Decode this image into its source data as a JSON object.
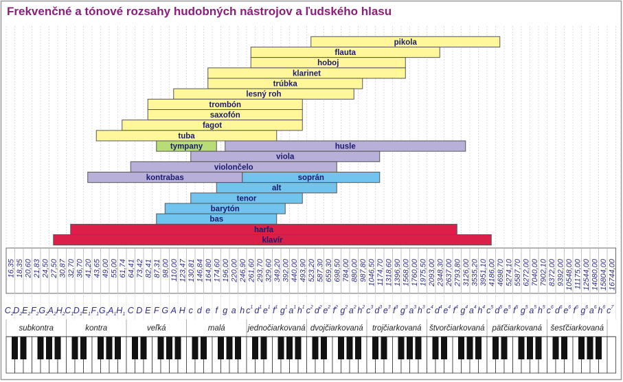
{
  "title": "Frekvenčné a tónové rozsahy hudobných nástrojov a ľudského hlasu",
  "frequencies": [
    "16,35",
    "18,35",
    "20,60",
    "21,83",
    "24,50",
    "27,50",
    "30,87",
    "32,70",
    "36,70",
    "41,20",
    "43,65",
    "49,00",
    "55,00",
    "61,74",
    "64,41",
    "73,42",
    "82,41",
    "87,31",
    "98,00",
    "110,00",
    "123,47",
    "130,81",
    "146,84",
    "164,80",
    "174,60",
    "196,00",
    "220,00",
    "246,90",
    "261,60",
    "293,70",
    "329,60",
    "349,20",
    "392,00",
    "440,00",
    "493,90",
    "523,20",
    "587,30",
    "659,30",
    "698,50",
    "784,00",
    "880,00",
    "987,80",
    "1046,50",
    "1174,70",
    "1318,60",
    "1396,90",
    "1568,00",
    "1760,00",
    "1975,50",
    "2093,00",
    "2348,30",
    "2637,00",
    "2793,80",
    "3126,00",
    "3535,20",
    "3951,10",
    "4186,00",
    "4698,70",
    "5274,10",
    "5587,70",
    "6272,00",
    "7040,00",
    "7902,10",
    "8372,00",
    "9392,00",
    "10548,00",
    "11175,00",
    "12544,00",
    "14080,00",
    "15804,00",
    "16744,00"
  ],
  "notes": [
    {
      "l": "C",
      "i": "2"
    },
    {
      "l": "D",
      "i": "2"
    },
    {
      "l": "E",
      "i": "2"
    },
    {
      "l": "F",
      "i": "2"
    },
    {
      "l": "G",
      "i": "2"
    },
    {
      "l": "A",
      "i": "2"
    },
    {
      "l": "H",
      "i": "2"
    },
    {
      "l": "C",
      "i": "1"
    },
    {
      "l": "D",
      "i": "1"
    },
    {
      "l": "E",
      "i": "1"
    },
    {
      "l": "F",
      "i": "1"
    },
    {
      "l": "G",
      "i": "1"
    },
    {
      "l": "A",
      "i": "1"
    },
    {
      "l": "H",
      "i": "1"
    },
    {
      "l": "C",
      "i": ""
    },
    {
      "l": "D",
      "i": ""
    },
    {
      "l": "E",
      "i": ""
    },
    {
      "l": "F",
      "i": ""
    },
    {
      "l": "G",
      "i": ""
    },
    {
      "l": "A",
      "i": ""
    },
    {
      "l": "H",
      "i": ""
    },
    {
      "l": "c",
      "i": ""
    },
    {
      "l": "d",
      "i": ""
    },
    {
      "l": "e",
      "i": ""
    },
    {
      "l": "f",
      "i": ""
    },
    {
      "l": "g",
      "i": ""
    },
    {
      "l": "a",
      "i": ""
    },
    {
      "l": "h",
      "i": ""
    },
    {
      "l": "c",
      "i": "1"
    },
    {
      "l": "d",
      "i": "1"
    },
    {
      "l": "e",
      "i": "1"
    },
    {
      "l": "f",
      "i": "1"
    },
    {
      "l": "g",
      "i": "1"
    },
    {
      "l": "a",
      "i": "1"
    },
    {
      "l": "h",
      "i": "1"
    },
    {
      "l": "c",
      "i": "2"
    },
    {
      "l": "d",
      "i": "2"
    },
    {
      "l": "e",
      "i": "2"
    },
    {
      "l": "f",
      "i": "2"
    },
    {
      "l": "g",
      "i": "2"
    },
    {
      "l": "a",
      "i": "2"
    },
    {
      "l": "h",
      "i": "2"
    },
    {
      "l": "c",
      "i": "3"
    },
    {
      "l": "d",
      "i": "3"
    },
    {
      "l": "e",
      "i": "3"
    },
    {
      "l": "f",
      "i": "3"
    },
    {
      "l": "g",
      "i": "3"
    },
    {
      "l": "a",
      "i": "3"
    },
    {
      "l": "h",
      "i": "3"
    },
    {
      "l": "c",
      "i": "4"
    },
    {
      "l": "d",
      "i": "4"
    },
    {
      "l": "e",
      "i": "4"
    },
    {
      "l": "f",
      "i": "4"
    },
    {
      "l": "g",
      "i": "4"
    },
    {
      "l": "a",
      "i": "4"
    },
    {
      "l": "h",
      "i": "4"
    },
    {
      "l": "c",
      "i": "5"
    },
    {
      "l": "d",
      "i": "5"
    },
    {
      "l": "e",
      "i": "5"
    },
    {
      "l": "f",
      "i": "5"
    },
    {
      "l": "g",
      "i": "5"
    },
    {
      "l": "a",
      "i": "5"
    },
    {
      "l": "h",
      "i": "5"
    },
    {
      "l": "c",
      "i": "6"
    },
    {
      "l": "d",
      "i": "6"
    },
    {
      "l": "e",
      "i": "6"
    },
    {
      "l": "f",
      "i": "6"
    },
    {
      "l": "g",
      "i": "6"
    },
    {
      "l": "a",
      "i": "6"
    },
    {
      "l": "h",
      "i": "6"
    },
    {
      "l": "c",
      "i": "7"
    }
  ],
  "octaves": [
    "subkontra",
    "kontra",
    "veľká",
    "malá",
    "jednočiarkovaná",
    "dvojčiarkovaná",
    "trojčiarkovaná",
    "štvorčiarkovaná",
    "päťčiarkovaná",
    "šesťčiarkovaná"
  ],
  "family_colors": {
    "wind": "#fff799",
    "percussion": "#b8dc78",
    "strings": "#b8b0d8",
    "voice": "#70c4ee",
    "keyboard": "#dc1f48"
  },
  "instrument_rows": [
    [
      {
        "name": "pikola",
        "family": "wind",
        "from": "523,20",
        "to": "4698,70"
      }
    ],
    [
      {
        "name": "flauta",
        "family": "wind",
        "from": "261,60",
        "to": "2348,30"
      }
    ],
    [
      {
        "name": "hoboj",
        "family": "wind",
        "from": "261,60",
        "to": "1568,00"
      }
    ],
    [
      {
        "name": "klarinet",
        "family": "wind",
        "from": "164,80",
        "to": "1568,00"
      }
    ],
    [
      {
        "name": "trúbka",
        "family": "wind",
        "from": "164,80",
        "to": "987,80"
      }
    ],
    [
      {
        "name": "lesný roh",
        "family": "wind",
        "from": "110,00",
        "to": "880,00"
      }
    ],
    [
      {
        "name": "trombón",
        "family": "wind",
        "from": "82,41",
        "to": "493,90"
      }
    ],
    [
      {
        "name": "saxofón",
        "family": "wind",
        "from": "82,41",
        "to": "493,90"
      }
    ],
    [
      {
        "name": "fagot",
        "family": "wind",
        "from": "61,74",
        "to": "493,90"
      }
    ],
    [
      {
        "name": "tuba",
        "family": "wind",
        "from": "43,65",
        "to": "349,20"
      }
    ],
    [
      {
        "name": "tympany",
        "family": "percussion",
        "from": "87,31",
        "to": "174,60"
      },
      {
        "name": "husle",
        "family": "strings",
        "from": "196,00",
        "to": "3126,00"
      }
    ],
    [
      {
        "name": "viola",
        "family": "strings",
        "from": "130,81",
        "to": "1174,70"
      }
    ],
    [
      {
        "name": "violončelo",
        "family": "strings",
        "from": "64,41",
        "to": "698,50"
      }
    ],
    [
      {
        "name": "kontrabas",
        "family": "strings",
        "from": "41,20",
        "to": "246,90"
      },
      {
        "name": "soprán",
        "family": "voice",
        "from": "246,90",
        "to": "1174,70"
      }
    ],
    [
      {
        "name": "alt",
        "family": "voice",
        "from": "174,60",
        "to": "698,50"
      }
    ],
    [
      {
        "name": "tenor",
        "family": "voice",
        "from": "130,81",
        "to": "493,90"
      }
    ],
    [
      {
        "name": "barytón",
        "family": "voice",
        "from": "98,00",
        "to": "392,00"
      }
    ],
    [
      {
        "name": "bas",
        "family": "voice",
        "from": "87,31",
        "to": "349,20"
      }
    ],
    [
      {
        "name": "harfa",
        "family": "keyboard",
        "from": "32,70",
        "to": "2793,80"
      }
    ],
    [
      {
        "name": "klavír",
        "family": "keyboard",
        "from": "27,50",
        "to": "4186,00"
      }
    ]
  ]
}
